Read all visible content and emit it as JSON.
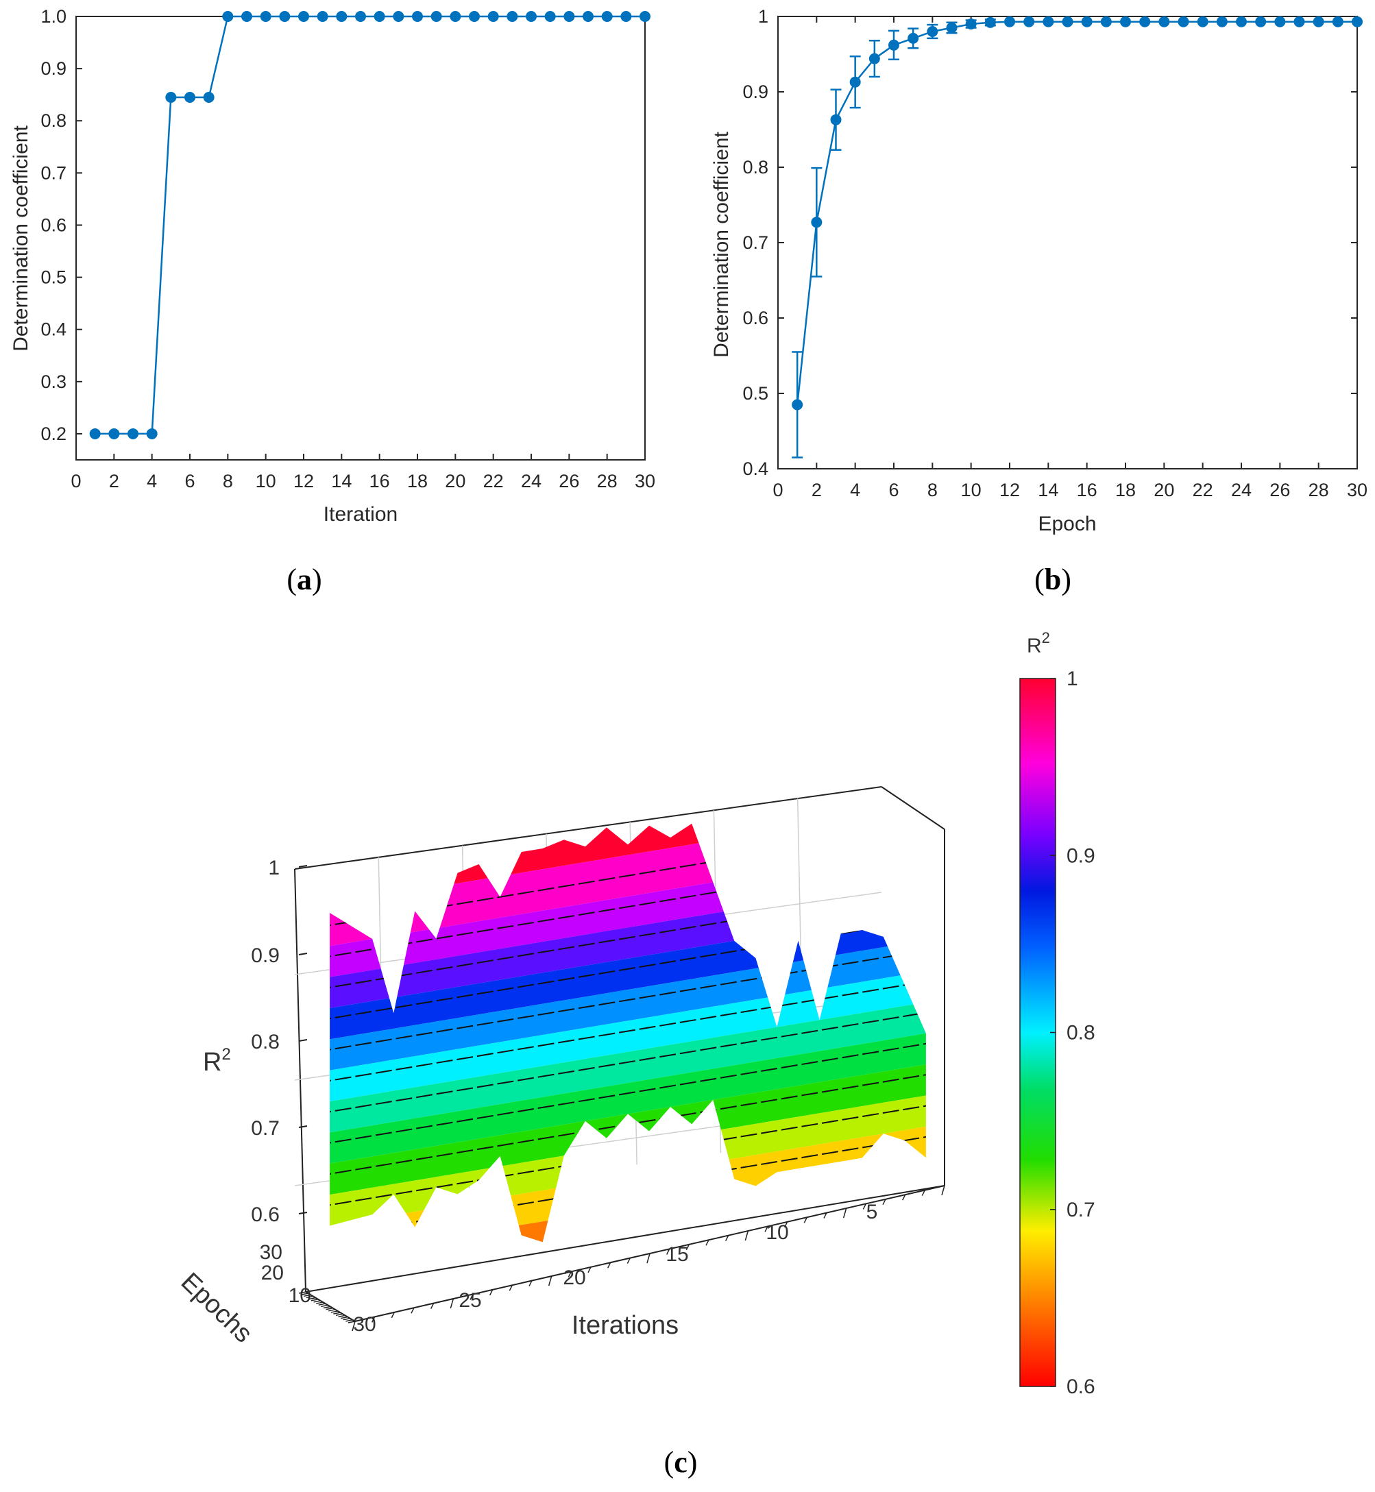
{
  "panels": {
    "a": {
      "caption_letter": "a"
    },
    "b": {
      "caption_letter": "b"
    },
    "c": {
      "caption_letter": "c"
    }
  },
  "colors": {
    "series": "#0072BD",
    "axis": "#262626",
    "grid": "#d9d9d9"
  },
  "chart_data": [
    {
      "id": "a",
      "type": "line",
      "xlabel": "Iteration",
      "ylabel": "Determination coefficient",
      "xlim": [
        0,
        30
      ],
      "ylim": [
        0.15,
        1.0
      ],
      "xticks": [
        0,
        2,
        4,
        6,
        8,
        10,
        12,
        14,
        16,
        18,
        20,
        22,
        24,
        26,
        28,
        30
      ],
      "yticks": [
        0.2,
        0.3,
        0.4,
        0.5,
        0.6,
        0.7,
        0.8,
        0.9,
        1.0
      ],
      "ytick_labels": [
        "0.2",
        "0.3",
        "0.4",
        "0.5",
        "0.6",
        "0.7",
        "0.8",
        "0.9",
        "1.0"
      ],
      "x": [
        1,
        2,
        3,
        4,
        5,
        6,
        7,
        8,
        9,
        10,
        11,
        12,
        13,
        14,
        15,
        16,
        17,
        18,
        19,
        20,
        21,
        22,
        23,
        24,
        25,
        26,
        27,
        28,
        29,
        30
      ],
      "y": [
        0.2,
        0.2,
        0.2,
        0.2,
        0.845,
        0.845,
        0.845,
        1,
        1,
        1,
        1,
        1,
        1,
        1,
        1,
        1,
        1,
        1,
        1,
        1,
        1,
        1,
        1,
        1,
        1,
        1,
        1,
        1,
        1,
        1
      ]
    },
    {
      "id": "b",
      "type": "line",
      "xlabel": "Epoch",
      "ylabel": "Determination coefficient",
      "xlim": [
        0,
        30
      ],
      "ylim": [
        0.4,
        1.0
      ],
      "xticks": [
        0,
        2,
        4,
        6,
        8,
        10,
        12,
        14,
        16,
        18,
        20,
        22,
        24,
        26,
        28,
        30
      ],
      "yticks": [
        0.4,
        0.5,
        0.6,
        0.7,
        0.8,
        0.9,
        1.0
      ],
      "ytick_labels": [
        "0.4",
        "0.5",
        "0.6",
        "0.7",
        "0.8",
        "0.9",
        "1"
      ],
      "x": [
        1,
        2,
        3,
        4,
        5,
        6,
        7,
        8,
        9,
        10,
        11,
        12,
        13,
        14,
        15,
        16,
        17,
        18,
        19,
        20,
        21,
        22,
        23,
        24,
        25,
        26,
        27,
        28,
        29,
        30
      ],
      "y": [
        0.485,
        0.727,
        0.863,
        0.913,
        0.944,
        0.962,
        0.971,
        0.98,
        0.985,
        0.99,
        0.992,
        0.993,
        0.993,
        0.993,
        0.993,
        0.993,
        0.993,
        0.993,
        0.993,
        0.993,
        0.993,
        0.993,
        0.993,
        0.993,
        0.993,
        0.993,
        0.993,
        0.993,
        0.993,
        0.993
      ],
      "error": [
        0.07,
        0.072,
        0.04,
        0.034,
        0.024,
        0.019,
        0.013,
        0.009,
        0.007,
        0.005,
        0.004,
        0.003,
        0.002,
        0.002,
        0.002,
        0.002,
        0.002,
        0.002,
        0.002,
        0.002,
        0.002,
        0.002,
        0.002,
        0.002,
        0.002,
        0.002,
        0.002,
        0.002,
        0.002,
        0.002
      ]
    },
    {
      "id": "c",
      "type": "surface",
      "xlabel": "Iterations",
      "ylabel": "Epochs",
      "zlabel": "R",
      "zlabel_sup": "2",
      "xticks": [
        "30",
        "25",
        "20",
        "15",
        "10",
        "5"
      ],
      "yticks": [
        "30",
        "20",
        "10"
      ],
      "zticks": [
        "1",
        "0.9",
        "0.8",
        "0.7",
        "0.6"
      ],
      "zlim": [
        0.6,
        1.0
      ],
      "colorbar_title": "R",
      "colorbar_title_sup": "2",
      "colorbar_ticks": [
        "1",
        "0.9",
        "0.8",
        "0.7",
        "0.6"
      ],
      "iterations_profile": [
        {
          "iteration": 30,
          "r2_max": 0.962,
          "r2_min": 0.66
        },
        {
          "iteration": 28,
          "r2_max": 0.93,
          "r2_min": 0.664
        },
        {
          "iteration": 27,
          "r2_max": 0.855,
          "r2_min": 0.68
        },
        {
          "iteration": 26,
          "r2_max": 0.95,
          "r2_min": 0.645
        },
        {
          "iteration": 25,
          "r2_max": 0.92,
          "r2_min": 0.68
        },
        {
          "iteration": 24,
          "r2_max": 0.98,
          "r2_min": 0.67
        },
        {
          "iteration": 23,
          "r2_max": 0.985,
          "r2_min": 0.68
        },
        {
          "iteration": 22,
          "r2_max": 0.95,
          "r2_min": 0.7
        },
        {
          "iteration": 21,
          "r2_max": 0.99,
          "r2_min": 0.62
        },
        {
          "iteration": 20,
          "r2_max": 0.99,
          "r2_min": 0.61
        },
        {
          "iteration": 19,
          "r2_max": 0.995,
          "r2_min": 0.69
        },
        {
          "iteration": 18,
          "r2_max": 0.985,
          "r2_min": 0.72
        },
        {
          "iteration": 17,
          "r2_max": 1.0,
          "r2_min": 0.7
        },
        {
          "iteration": 16,
          "r2_max": 0.98,
          "r2_min": 0.72
        },
        {
          "iteration": 15,
          "r2_max": 0.995,
          "r2_min": 0.7
        },
        {
          "iteration": 14,
          "r2_max": 0.98,
          "r2_min": 0.72
        },
        {
          "iteration": 13,
          "r2_max": 0.99,
          "r2_min": 0.7
        },
        {
          "iteration": 12,
          "r2_max": 0.93,
          "r2_min": 0.72
        },
        {
          "iteration": 11,
          "r2_max": 0.87,
          "r2_min": 0.64
        },
        {
          "iteration": 10,
          "r2_max": 0.85,
          "r2_min": 0.63
        },
        {
          "iteration": 9,
          "r2_max": 0.78,
          "r2_min": 0.64
        },
        {
          "iteration": 8,
          "r2_max": 0.86,
          "r2_min": 0.64
        },
        {
          "iteration": 7,
          "r2_max": 0.78,
          "r2_min": 0.64
        },
        {
          "iteration": 6,
          "r2_max": 0.86,
          "r2_min": 0.64
        },
        {
          "iteration": 5,
          "r2_max": 0.86,
          "r2_min": 0.64
        },
        {
          "iteration": 4,
          "r2_max": 0.85,
          "r2_min": 0.66
        },
        {
          "iteration": 3,
          "r2_max": 0.8,
          "r2_min": 0.65
        },
        {
          "iteration": 2,
          "r2_max": 0.75,
          "r2_min": 0.63
        }
      ]
    }
  ]
}
